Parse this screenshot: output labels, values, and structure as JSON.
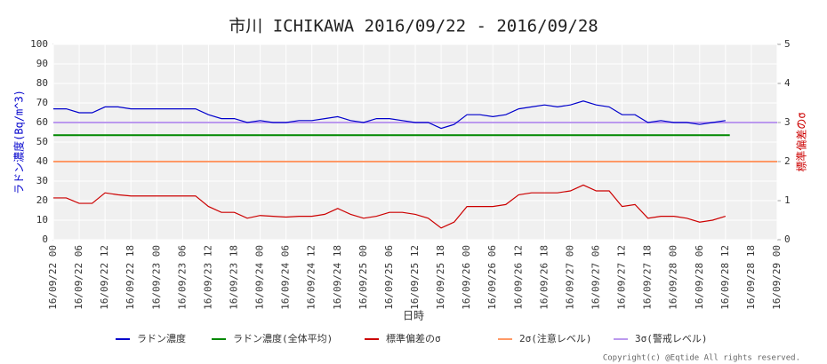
{
  "chart_data": {
    "type": "line",
    "title": "市川 ICHIKAWA 2016/09/22 - 2016/09/28",
    "xlabel": "日時",
    "ylabel": "ラドン濃度(Bq/m^3)",
    "y2label": "標準偏差のσ",
    "copyright": "Copyright(c) @Eqtide All rights reserved.",
    "xlim": [
      0,
      168
    ],
    "xticks": [
      {
        "value": 0,
        "label": "16/09/22 00"
      },
      {
        "value": 6,
        "label": "16/09/22 06"
      },
      {
        "value": 12,
        "label": "16/09/22 12"
      },
      {
        "value": 18,
        "label": "16/09/22 18"
      },
      {
        "value": 24,
        "label": "16/09/23 00"
      },
      {
        "value": 30,
        "label": "16/09/23 06"
      },
      {
        "value": 36,
        "label": "16/09/23 12"
      },
      {
        "value": 42,
        "label": "16/09/23 18"
      },
      {
        "value": 48,
        "label": "16/09/24 00"
      },
      {
        "value": 54,
        "label": "16/09/24 06"
      },
      {
        "value": 60,
        "label": "16/09/24 12"
      },
      {
        "value": 66,
        "label": "16/09/24 18"
      },
      {
        "value": 72,
        "label": "16/09/25 00"
      },
      {
        "value": 78,
        "label": "16/09/25 06"
      },
      {
        "value": 84,
        "label": "16/09/25 12"
      },
      {
        "value": 90,
        "label": "16/09/25 18"
      },
      {
        "value": 96,
        "label": "16/09/26 00"
      },
      {
        "value": 102,
        "label": "16/09/26 06"
      },
      {
        "value": 108,
        "label": "16/09/26 12"
      },
      {
        "value": 114,
        "label": "16/09/26 18"
      },
      {
        "value": 120,
        "label": "16/09/27 00"
      },
      {
        "value": 126,
        "label": "16/09/27 06"
      },
      {
        "value": 132,
        "label": "16/09/27 12"
      },
      {
        "value": 138,
        "label": "16/09/27 18"
      },
      {
        "value": 144,
        "label": "16/09/28 00"
      },
      {
        "value": 150,
        "label": "16/09/28 06"
      },
      {
        "value": 156,
        "label": "16/09/28 12"
      },
      {
        "value": 162,
        "label": "16/09/28 18"
      },
      {
        "value": 168,
        "label": "16/09/29 00"
      }
    ],
    "ylim": [
      0,
      100
    ],
    "yticks": [
      0,
      10,
      20,
      30,
      40,
      50,
      60,
      70,
      80,
      90,
      100
    ],
    "y2lim": [
      0,
      5
    ],
    "y2ticks": [
      0,
      1,
      2,
      3,
      4,
      5
    ],
    "grid": true,
    "x": [
      0,
      3,
      6,
      9,
      12,
      15,
      18,
      21,
      24,
      27,
      30,
      33,
      36,
      39,
      42,
      45,
      48,
      51,
      54,
      57,
      60,
      63,
      66,
      69,
      72,
      75,
      78,
      81,
      84,
      87,
      90,
      93,
      96,
      99,
      102,
      105,
      108,
      111,
      114,
      117,
      120,
      123,
      126,
      129,
      132,
      135,
      138,
      141,
      144,
      147,
      150,
      153,
      156
    ],
    "series": [
      {
        "name": "ラドン濃度",
        "color": "#0000cc",
        "values": [
          67,
          67,
          65,
          65,
          68,
          68,
          67,
          67,
          67,
          67,
          67,
          67,
          64,
          62,
          62,
          60,
          61,
          60,
          60,
          61,
          61,
          62,
          63,
          61,
          60,
          62,
          62,
          61,
          60,
          60,
          57,
          59,
          64,
          64,
          63,
          64,
          67,
          68,
          69,
          68,
          69,
          71,
          69,
          68,
          64,
          64,
          60,
          61,
          60,
          60,
          59,
          60,
          61
        ]
      },
      {
        "name": "標準偏差のσ",
        "color": "#cc0000",
        "axis": "y2",
        "values": [
          1.07,
          1.07,
          0.93,
          0.93,
          1.2,
          1.15,
          1.12,
          1.12,
          1.12,
          1.12,
          1.12,
          1.12,
          0.85,
          0.7,
          0.7,
          0.55,
          0.62,
          0.6,
          0.58,
          0.6,
          0.6,
          0.65,
          0.8,
          0.65,
          0.55,
          0.6,
          0.7,
          0.7,
          0.65,
          0.55,
          0.3,
          0.45,
          0.85,
          0.85,
          0.85,
          0.9,
          1.15,
          1.2,
          1.2,
          1.2,
          1.25,
          1.4,
          1.25,
          1.25,
          0.85,
          0.9,
          0.55,
          0.6,
          0.6,
          0.55,
          0.45,
          0.5,
          0.6
        ]
      }
    ],
    "reference_lines": [
      {
        "name": "ラドン濃度(全体平均)",
        "color": "#008800",
        "value": 53.5,
        "xrange": [
          0,
          157
        ]
      },
      {
        "name": "2σ(注意レベル)",
        "color": "#ff9966",
        "axis": "y2",
        "value": 2
      },
      {
        "name": "3σ(警戒レベル)",
        "color": "#bb99ee",
        "axis": "y2",
        "value": 3
      }
    ]
  }
}
